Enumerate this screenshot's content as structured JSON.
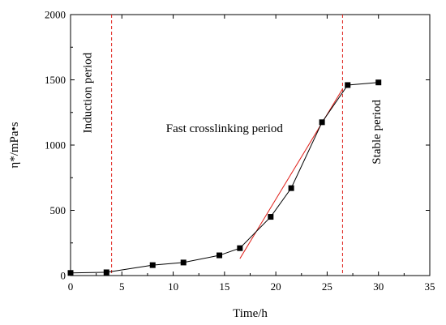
{
  "chart_data": {
    "type": "scatter",
    "title": "",
    "xlabel": "Time/h",
    "ylabel": "η*/mPa•s",
    "xlim": [
      0,
      35
    ],
    "ylim": [
      0,
      2000
    ],
    "xticks": [
      "0",
      "5",
      "10",
      "15",
      "20",
      "25",
      "30",
      "35"
    ],
    "yticks": [
      "0",
      "500",
      "1000",
      "1500",
      "2000"
    ],
    "grid": false,
    "series": [
      {
        "name": "",
        "x": [
          0,
          3.5,
          8,
          11,
          14.5,
          16.5,
          19.5,
          21.5,
          24.5,
          27,
          30
        ],
        "y": [
          20,
          25,
          80,
          100,
          155,
          210,
          450,
          670,
          1175,
          1460,
          1480
        ],
        "marker": "square",
        "line": true,
        "color": "#000000"
      }
    ],
    "fit_line": {
      "x": [
        16.5,
        26.5
      ],
      "y": [
        130,
        1430
      ],
      "color": "#e0201a"
    },
    "vlines": [
      {
        "x": 4,
        "color": "#e0201a",
        "style": "dashed"
      },
      {
        "x": 26.5,
        "color": "#e0201a",
        "style": "dashed"
      }
    ],
    "annotations": [
      {
        "text": "Induction period",
        "x": 2,
        "y": 1400,
        "rotation": -90
      },
      {
        "text": "Fast crosslinking period",
        "x": 15,
        "y": 1100,
        "rotation": 0
      },
      {
        "text": "Stable period",
        "x": 30.2,
        "y": 1100,
        "rotation": -90
      }
    ]
  }
}
